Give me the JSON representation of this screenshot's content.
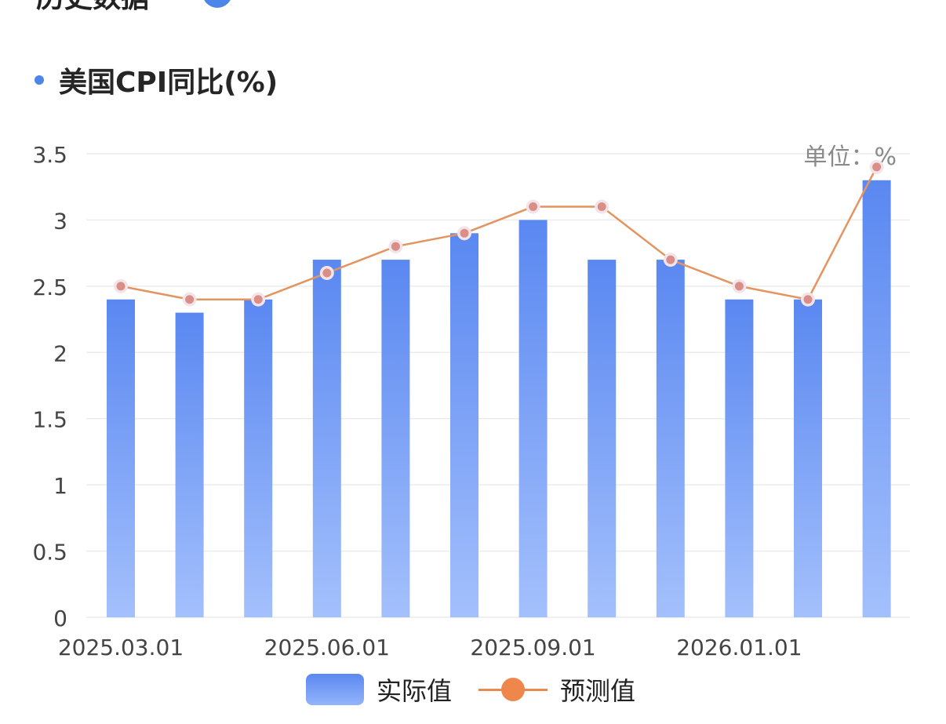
{
  "section": {
    "title": "历史数据"
  },
  "chart_title": "美国CPI同比(%)",
  "colors": {
    "accent": "#4b86e8",
    "bar_top": "#5a88f1",
    "bar_bottom": "#a4c0fc",
    "line": "#e4945f",
    "point": "#d98f87"
  },
  "chart_data": {
    "type": "bar",
    "title": "美国CPI同比(%)",
    "unit_label": "单位：%",
    "categories": [
      "2025.03.01",
      "",
      "",
      "2025.06.01",
      "",
      "",
      "2025.09.01",
      "",
      "",
      "2026.01.01",
      "",
      ""
    ],
    "ylim": [
      0,
      3.5
    ],
    "yticks": [
      "0",
      "0.5",
      "1",
      "1.5",
      "2",
      "2.5",
      "3",
      "3.5"
    ],
    "grid": true,
    "legend_position": "bottom",
    "series": [
      {
        "name": "实际值",
        "type": "bar",
        "values": [
          2.4,
          2.3,
          2.4,
          2.7,
          2.7,
          2.9,
          3.0,
          2.7,
          2.7,
          2.4,
          2.4,
          3.3
        ]
      },
      {
        "name": "预测值",
        "type": "line",
        "values": [
          2.5,
          2.4,
          2.4,
          2.6,
          2.8,
          2.9,
          3.1,
          3.1,
          2.7,
          2.5,
          2.4,
          3.4
        ]
      }
    ]
  }
}
